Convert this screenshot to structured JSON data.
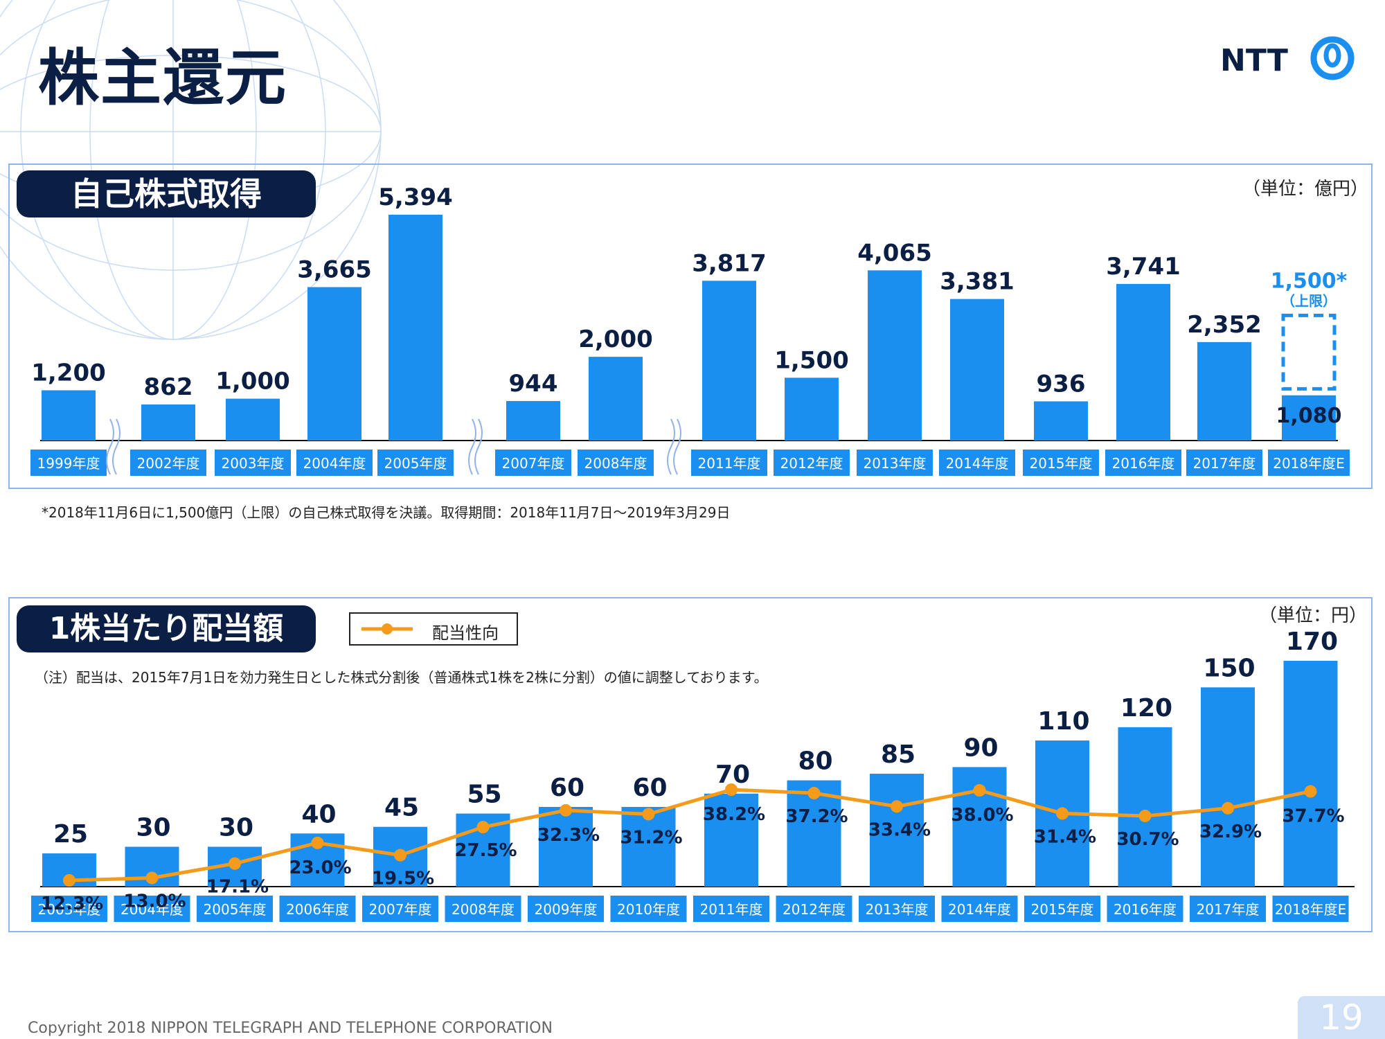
{
  "page": {
    "title": "株主還元",
    "logo_text": "NTT",
    "footer": "Copyright 2018 NIPPON TELEGRAPH AND TELEPHONE CORPORATION",
    "page_number": "19"
  },
  "buyback": {
    "tag": "自己株式取得",
    "unit": "（単位：億円）",
    "note": "*2018年11月6日に1,500億円（上限）の自己株式取得を決議。取得期間：2018年11月7日～2019年3月29日"
  },
  "dividend": {
    "tag": "1株当たり配当額",
    "unit": "（単位：円）",
    "note": "（注）配当は、2015年7月1日を効力発生日とした株式分割後（普通株式1株を2株に分割）の値に調整しております。",
    "legend_label": "配当性向"
  },
  "colors": {
    "bar": "#1a8ff0",
    "line": "#f59b1c",
    "navy": "#0b1f45",
    "label_bg": "#1a8ff0",
    "dashed": "#1a8ff0"
  },
  "chart_data": [
    {
      "type": "bar",
      "categories": [
        "1999年度",
        "2002年度",
        "2003年度",
        "2004年度",
        "2005年度",
        "2007年度",
        "2008年度",
        "2011年度",
        "2012年度",
        "2013年度",
        "2014年度",
        "2015年度",
        "2016年度",
        "2017年度",
        "2018年度E"
      ],
      "values": [
        1200,
        862,
        1000,
        3665,
        5394,
        944,
        2000,
        3817,
        1500,
        4065,
        3381,
        936,
        3741,
        2352,
        1080
      ],
      "value_labels": [
        "1,200",
        "862",
        "1,000",
        "3,665",
        "5,394",
        "944",
        "2,000",
        "3,817",
        "1,500",
        "4,065",
        "3,381",
        "936",
        "3,741",
        "2,352",
        "1,080"
      ],
      "axis_breaks_after": [
        "1999年度",
        "2005年度",
        "2008年度"
      ],
      "planned_upper_limit": {
        "category": "2018年度E",
        "value": 1500,
        "label": "1,500*",
        "sublabel": "（上限）"
      },
      "ylabel": "億円"
    },
    {
      "type": "bar",
      "categories": [
        "2003年度",
        "2004年度",
        "2005年度",
        "2006年度",
        "2007年度",
        "2008年度",
        "2009年度",
        "2010年度",
        "2011年度",
        "2012年度",
        "2013年度",
        "2014年度",
        "2015年度",
        "2016年度",
        "2017年度",
        "2018年度E"
      ],
      "series": [
        {
          "name": "",
          "type": "bar",
          "values": [
            25,
            30,
            30,
            40,
            45,
            55,
            60,
            60,
            70,
            80,
            85,
            90,
            110,
            120,
            150,
            170
          ]
        },
        {
          "name": "配当性向",
          "type": "line",
          "values": [
            12.3,
            13.0,
            17.1,
            23.0,
            19.5,
            27.5,
            32.3,
            31.2,
            38.2,
            37.2,
            33.4,
            38.0,
            31.4,
            30.7,
            32.9,
            37.7
          ],
          "labels": [
            "12.3%",
            "13.0%",
            "17.1%",
            "23.0%",
            "19.5%",
            "27.5%",
            "32.3%",
            "31.2%",
            "38.2%",
            "37.2%",
            "33.4%",
            "38.0%",
            "31.4%",
            "30.7%",
            "32.9%",
            "37.7%"
          ]
        }
      ],
      "ylabel": "円"
    }
  ]
}
